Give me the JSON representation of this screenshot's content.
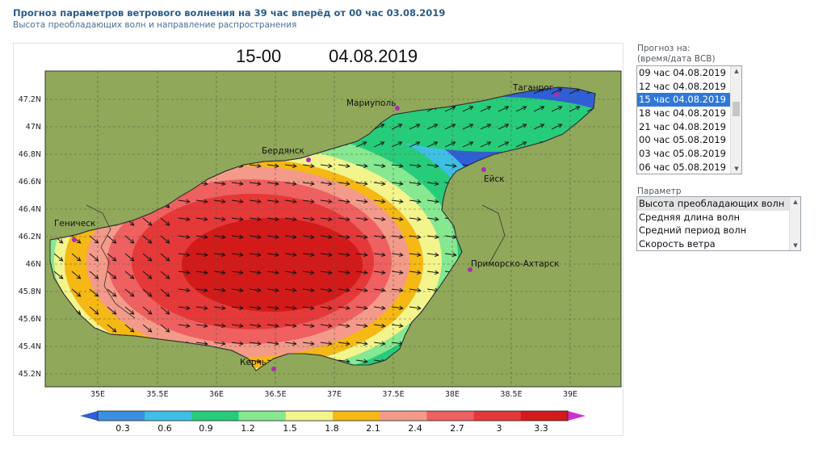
{
  "header": {
    "title": "Прогноз параметров ветрового волнения на 39 час вперёд от 00 час 03.08.2019",
    "subtitle": "Высота преобладающих волн и направление распространения"
  },
  "map": {
    "time_label": "15-00",
    "date_label": "04.08.2019",
    "lat_labels": [
      "47.2N",
      "47N",
      "46.8N",
      "46.6N",
      "46.4N",
      "46.2N",
      "46N",
      "45.8N",
      "45.6N",
      "45.4N",
      "45.2N"
    ],
    "lon_labels": [
      "35E",
      "35.5E",
      "36E",
      "36.5E",
      "37E",
      "37.5E",
      "38E",
      "38.5E",
      "39E"
    ],
    "cities": [
      {
        "name": "Таганрог"
      },
      {
        "name": "Мариуполь"
      },
      {
        "name": "Бердянск"
      },
      {
        "name": "Ейск"
      },
      {
        "name": "Геническ"
      },
      {
        "name": "Приморско-Ахтарск"
      },
      {
        "name": "Керчь"
      }
    ],
    "colors": {
      "land": "#8fa85a",
      "background": "#ffffff",
      "grid": "#6b6b4f",
      "city_marker": "#b02bb0"
    }
  },
  "legend": {
    "values": [
      "0.3",
      "0.6",
      "0.9",
      "1.2",
      "1.5",
      "1.8",
      "2.1",
      "2.4",
      "2.7",
      "3",
      "3.3"
    ],
    "colors": [
      "#2f5fd6",
      "#3a8fe0",
      "#3fbfe6",
      "#27cc7a",
      "#86e890",
      "#f4f48c",
      "#f5b814",
      "#f49a8a",
      "#ef6060",
      "#e53838",
      "#d21a1a",
      "#d030d0"
    ]
  },
  "sidebar": {
    "forecast_label_line1": "Прогноз на:",
    "forecast_label_line2": "(время/дата ВСВ)",
    "times": [
      "09 час 04.08.2019",
      "12 час 04.08.2019",
      "15 час 04.08.2019",
      "18 час 04.08.2019",
      "21 час 04.08.2019",
      "00 час 05.08.2019",
      "03 час 05.08.2019",
      "06 час 05.08.2019"
    ],
    "selected_time_index": 2,
    "parameter_label": "Параметр",
    "parameters": [
      "Высота преобладающих волн",
      "Средняя длина волн",
      "Средний период волн",
      "Скорость ветра"
    ],
    "selected_parameter_index": 0
  }
}
